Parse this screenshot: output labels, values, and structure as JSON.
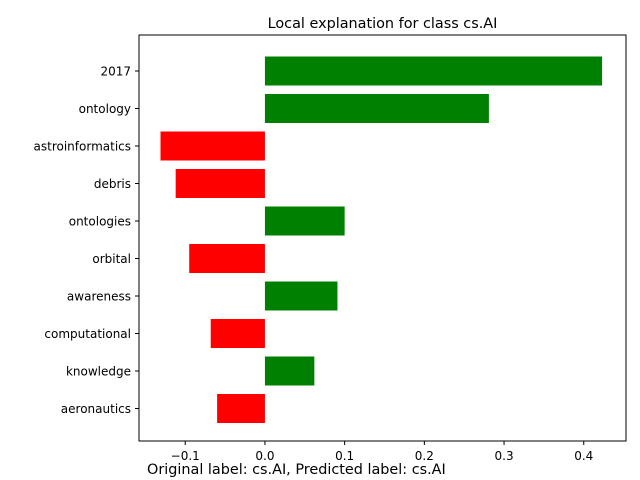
{
  "chart_data": {
    "type": "bar",
    "orientation": "horizontal",
    "title": "Local explanation for class cs.AI",
    "categories": [
      "2017",
      "ontology",
      "astroinformatics",
      "debris",
      "ontologies",
      "orbital",
      "awareness",
      "computational",
      "knowledge",
      "aeronautics"
    ],
    "values": [
      0.423,
      0.281,
      -0.131,
      -0.112,
      0.1,
      -0.095,
      0.091,
      -0.068,
      0.062,
      -0.06
    ],
    "xlim": [
      -0.158,
      0.453
    ],
    "x_ticks": [
      -0.1,
      0.0,
      0.1,
      0.2,
      0.3,
      0.4
    ],
    "x_tick_labels": [
      "−0.1",
      "0.0",
      "0.1",
      "0.2",
      "0.3",
      "0.4"
    ],
    "grid": false,
    "colors": {
      "positive": "#008000",
      "negative": "#ff0000"
    }
  },
  "footer": "Original label: cs.AI, Predicted label: cs.AI"
}
